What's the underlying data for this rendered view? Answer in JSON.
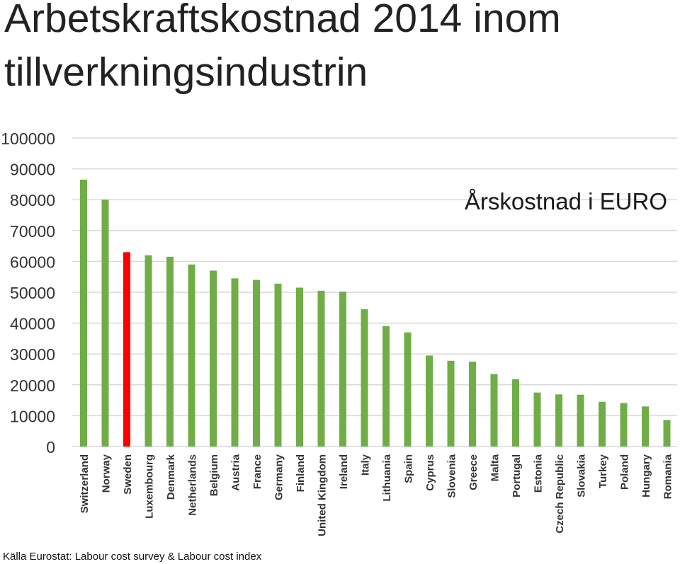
{
  "chart_data": {
    "type": "bar",
    "title_lines": [
      "Arbetskraftskostnad 2014 inom",
      "tillverkningsindustrin"
    ],
    "annotation": "Årskostnad i EURO",
    "source": "Källa Eurostat: Labour cost survey & Labour cost index",
    "categories": [
      "Switzerland",
      "Norway",
      "Sweden",
      "Luxembourg",
      "Denmark",
      "Netherlands",
      "Belgium",
      "Austria",
      "France",
      "Germany",
      "Finland",
      "United Kingdom",
      "Ireland",
      "Italy",
      "Lithuania",
      "Spain",
      "Cyprus",
      "Slovenia",
      "Greece",
      "Malta",
      "Portugal",
      "Estonia",
      "Czech Republic",
      "Slovakia",
      "Turkey",
      "Poland",
      "Hungary",
      "Romania"
    ],
    "values": [
      86500,
      80000,
      63000,
      62000,
      61500,
      59000,
      57000,
      54500,
      54000,
      52800,
      51500,
      50500,
      50200,
      44500,
      39000,
      37000,
      29500,
      27800,
      27500,
      23500,
      21800,
      17500,
      16900,
      16800,
      14500,
      14100,
      13000,
      8600
    ],
    "highlight_category": "Sweden",
    "colors": {
      "bar": "#70ad47",
      "highlight": "#ff0000",
      "grid": "#d9d9d9"
    },
    "ylim": [
      0,
      100000
    ],
    "yticks": [
      0,
      10000,
      20000,
      30000,
      40000,
      50000,
      60000,
      70000,
      80000,
      90000,
      100000
    ],
    "grid": true,
    "legend": "none"
  }
}
